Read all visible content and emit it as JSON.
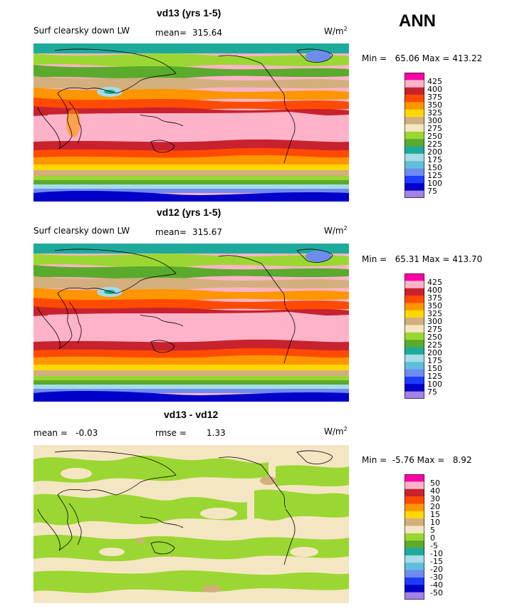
{
  "season": "ANN",
  "panels": [
    {
      "title": "vd13 (yrs 1-5)",
      "left_text": "Surf clearsky down LW",
      "mean_label": "mean=",
      "mean_value": "315.64",
      "units_base": "W/m",
      "units_exp": "2",
      "minmax_text": "Min =   65.06 Max = 413.22",
      "colorbar_colors": [
        "#ff00a6",
        "#ffb3c8",
        "#c8222e",
        "#ff4b00",
        "#ff9600",
        "#ffd700",
        "#d2af7d",
        "#f5e6c3",
        "#9bd732",
        "#5aaa2d",
        "#1eaa9b",
        "#a5dce6",
        "#5fbedc",
        "#6e8cf0",
        "#1e3cff",
        "#0000c8",
        "#a582e6"
      ],
      "colorbar_labels": [
        "425",
        "400",
        "375",
        "350",
        "325",
        "300",
        "275",
        "250",
        "225",
        "200",
        "175",
        "150",
        "125",
        "100",
        "75"
      ]
    },
    {
      "title": "vd12 (yrs 1-5)",
      "left_text": "Surf clearsky down LW",
      "mean_label": "mean=",
      "mean_value": "315.67",
      "units_base": "W/m",
      "units_exp": "2",
      "minmax_text": "Min =   65.31 Max = 413.70",
      "colorbar_colors": [
        "#ff00a6",
        "#ffb3c8",
        "#c8222e",
        "#ff4b00",
        "#ff9600",
        "#ffd700",
        "#d2af7d",
        "#f5e6c3",
        "#9bd732",
        "#5aaa2d",
        "#1eaa9b",
        "#a5dce6",
        "#5fbedc",
        "#6e8cf0",
        "#1e3cff",
        "#0000c8",
        "#a582e6"
      ],
      "colorbar_labels": [
        "425",
        "400",
        "375",
        "350",
        "325",
        "300",
        "275",
        "250",
        "225",
        "200",
        "175",
        "150",
        "125",
        "100",
        "75"
      ]
    },
    {
      "title": "vd13 - vd12",
      "left_text": "mean =   -0.03",
      "mean_label": "rmse =",
      "mean_value": "1.33",
      "units_base": "W/m",
      "units_exp": "2",
      "minmax_text": "Min =  -5.76 Max =   8.92",
      "colorbar_colors": [
        "#ff00a6",
        "#ffb3c8",
        "#c8222e",
        "#ff4b00",
        "#ff9600",
        "#ffd700",
        "#d2af7d",
        "#f5e6c3",
        "#9bd732",
        "#5aaa2d",
        "#1eaa9b",
        "#a5dce6",
        "#5fbedc",
        "#6e8cf0",
        "#1e3cff",
        "#0000c8",
        "#a582e6"
      ],
      "colorbar_labels": [
        "50",
        "40",
        "30",
        "20",
        "15",
        "10",
        "5",
        "0",
        "-5",
        "-10",
        "-15",
        "-20",
        "-30",
        "-40",
        "-50"
      ]
    }
  ]
}
